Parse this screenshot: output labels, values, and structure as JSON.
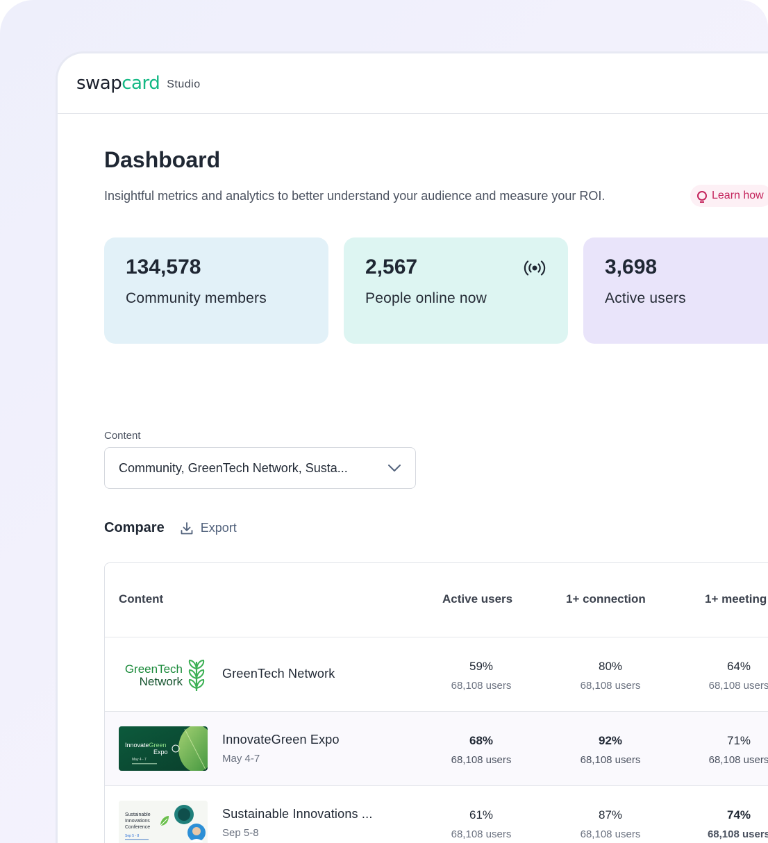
{
  "app": {
    "brand_main": "swapcard",
    "brand_sub": "Studio"
  },
  "page": {
    "title": "Dashboard",
    "subtitle": "Insightful metrics and analytics to better understand your audience and measure your ROI.",
    "learn_label": "Learn how"
  },
  "stats": [
    {
      "value": "134,578",
      "label": "Community members"
    },
    {
      "value": "2,567",
      "label": "People online now"
    },
    {
      "value": "3,698",
      "label": "Active users"
    }
  ],
  "filter": {
    "label": "Content",
    "value": "Community, GreenTech Network, Susta..."
  },
  "compare": {
    "title": "Compare",
    "export_label": "Export"
  },
  "table": {
    "headers": [
      "Content",
      "Active users",
      "1+ connection",
      "1+ meeting"
    ],
    "rows": [
      {
        "name": "GreenTech Network",
        "date": "",
        "thumb_text": "GreenTech Network",
        "c1": {
          "pct": "59%",
          "users": "68,108 users"
        },
        "c2": {
          "pct": "80%",
          "users": "68,108 users"
        },
        "c3": {
          "pct": "64%",
          "users": "68,108 users"
        }
      },
      {
        "name": "InnovateGreen Expo",
        "date": "May 4-7",
        "thumb_text": "InnovateGreen Expo",
        "c1": {
          "pct": "68%",
          "users": "68,108 users"
        },
        "c2": {
          "pct": "92%",
          "users": "68,108 users"
        },
        "c3": {
          "pct": "71%",
          "users": "68,108 users"
        }
      },
      {
        "name": "Sustainable Innovations ...",
        "date": "Sep 5-8",
        "thumb_text": "Sustainable Innovations Conference",
        "c1": {
          "pct": "61%",
          "users": "68,108 users"
        },
        "c2": {
          "pct": "87%",
          "users": "68,108 users"
        },
        "c3": {
          "pct": "74%",
          "users": "68,108 users"
        }
      }
    ]
  },
  "colors": {
    "brand_accent": "#13b884",
    "learn_accent": "#c4245c",
    "card1": "#e2f1f8",
    "card2": "#ddf5f2",
    "card3": "#e9e4fa"
  }
}
